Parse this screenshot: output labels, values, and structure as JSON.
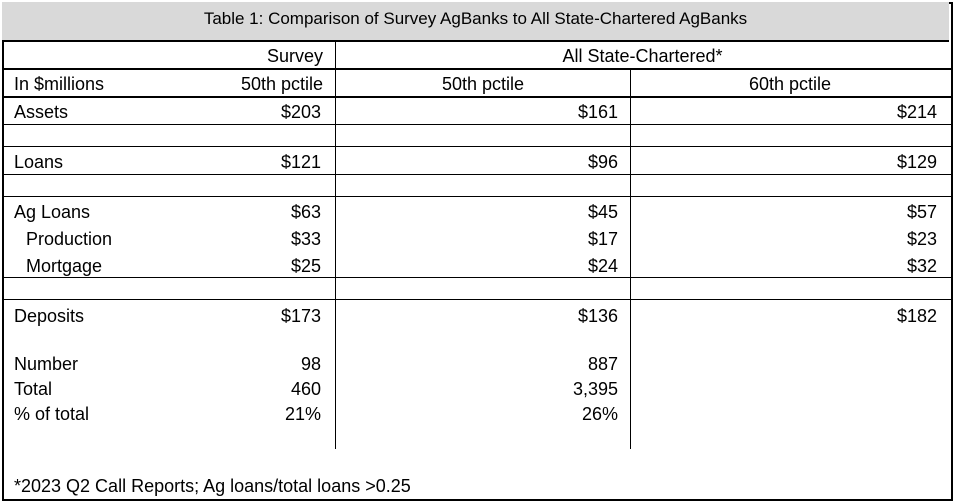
{
  "title": "Table 1: Comparison of Survey AgBanks to All State-Chartered AgBanks",
  "header": {
    "group_survey": "Survey",
    "group_all": "All State-Chartered*",
    "row_label": "In $millions",
    "col_survey": "50th pctile",
    "col_all50": "50th pctile",
    "col_all60": "60th pctile"
  },
  "rows": [
    {
      "label": "Assets",
      "survey": "$203",
      "all50": "$161",
      "all60": "$214"
    },
    {
      "label": "Loans",
      "survey": "$121",
      "all50": "$96",
      "all60": "$129"
    },
    {
      "label": "Ag Loans",
      "survey": "$63",
      "all50": "$45",
      "all60": "$57"
    },
    {
      "label": "Production",
      "survey": "$33",
      "all50": "$17",
      "all60": "$23"
    },
    {
      "label": "Mortgage",
      "survey": "$25",
      "all50": "$24",
      "all60": "$32"
    },
    {
      "label": "Deposits",
      "survey": "$173",
      "all50": "$136",
      "all60": "$182"
    },
    {
      "label": "Number",
      "survey": "98",
      "all50": "887"
    },
    {
      "label": "Total",
      "survey": "460",
      "all50": "3,395"
    },
    {
      "label": "% of total",
      "survey": "21%",
      "all50": "26%"
    }
  ],
  "footnote": "*2023 Q2 Call Reports; Ag loans/total loans >0.25"
}
